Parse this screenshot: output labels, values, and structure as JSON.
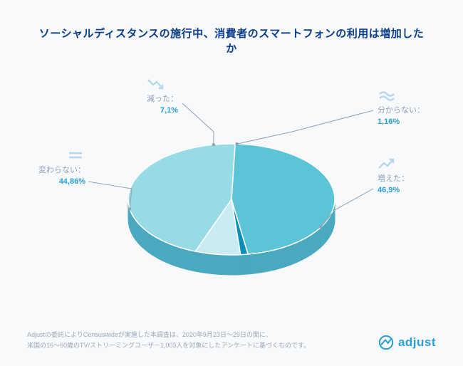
{
  "title": "ソーシャルディスタンスの施行中、消費者のスマートフォンの利用は増加したか",
  "footnote": {
    "line1": "Adjustの委託によりCensuswideが実施した本調査は、2020年9月23日〜29日の間に、",
    "line2": "米国の16〜60歳のTV/ストリーミングユーザー1,003人を対象にしたアンケートに基づくものです。"
  },
  "logo_text": "adjust",
  "chart": {
    "type": "pie-3d",
    "background_color": "#f7f9fb",
    "depth_shade": "#4aa9bf",
    "slices": [
      {
        "key": "increased",
        "label": "増えた：",
        "value_text": "46,9%",
        "value": 46.9,
        "fill": "#5bc4d6",
        "icon": "trend-up"
      },
      {
        "key": "dontknow",
        "label": "分からない：",
        "value_text": "1,16%",
        "value": 1.16,
        "fill": "#0a8eb8",
        "icon": "approx"
      },
      {
        "key": "decreased",
        "label": "減った：",
        "value_text": "7,1%",
        "value": 7.1,
        "fill": "#c9ecf2",
        "icon": "trend-down"
      },
      {
        "key": "same",
        "label": "変わらない：",
        "value_text": "44,86%",
        "value": 44.86,
        "fill": "#97dbe5",
        "icon": "equals"
      }
    ],
    "label_name_color": "#8fa2b8",
    "label_value_color": "#2a9fd6",
    "label_fontsize": 11,
    "title_color": "#0b3c8c",
    "title_fontsize": 15,
    "footnote_color": "#9aa8b8",
    "footnote_fontsize": 9,
    "leader_color": "#8fa2b8",
    "stroke_color": "#ffffff"
  }
}
